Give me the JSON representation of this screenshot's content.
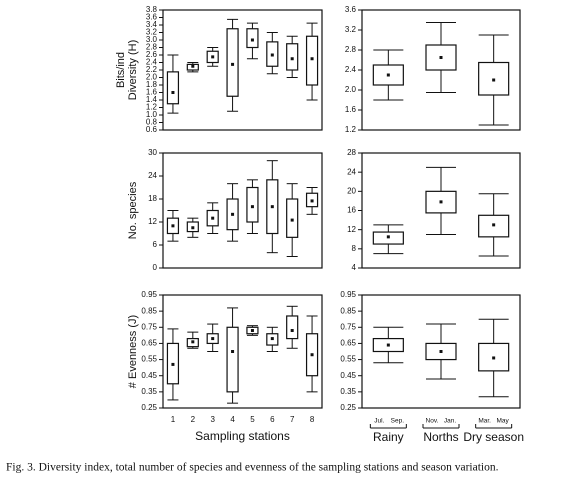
{
  "chart_data": [
    {
      "type": "box",
      "ylabel": [
        "Bits/ind",
        "Diversity (H)"
      ],
      "ylim": [
        0.6,
        3.8
      ],
      "yticks": [
        0.6,
        0.8,
        {
          "value": 1.0,
          "label": "1.0"
        },
        1.2,
        1.4,
        1.6,
        1.8,
        {
          "value": 2.0,
          "label": "2.0"
        },
        2.2,
        2.4,
        2.6,
        2.8,
        {
          "value": 3.0,
          "label": "3.0"
        },
        3.2,
        3.4,
        3.6,
        3.8
      ],
      "boxes": [
        {
          "low": 1.05,
          "q1": 1.3,
          "mid": 1.6,
          "q3": 2.15,
          "high": 2.6
        },
        {
          "low": 2.15,
          "q1": 2.2,
          "mid": 2.3,
          "q3": 2.35,
          "high": 2.4
        },
        {
          "low": 2.3,
          "q1": 2.4,
          "mid": 2.55,
          "q3": 2.7,
          "high": 2.8
        },
        {
          "low": 1.1,
          "q1": 1.5,
          "mid": 2.35,
          "q3": 3.3,
          "high": 3.55
        },
        {
          "low": 2.5,
          "q1": 2.8,
          "mid": 3.0,
          "q3": 3.3,
          "high": 3.45
        },
        {
          "low": 2.1,
          "q1": 2.3,
          "mid": 2.6,
          "q3": 2.95,
          "high": 3.2
        },
        {
          "low": 2.0,
          "q1": 2.2,
          "mid": 2.5,
          "q3": 2.9,
          "high": 3.1
        },
        {
          "low": 1.4,
          "q1": 1.8,
          "mid": 2.5,
          "q3": 3.1,
          "high": 3.45
        }
      ]
    },
    {
      "type": "box",
      "ylim": [
        1.2,
        3.6
      ],
      "yticks": [
        1.2,
        1.6,
        {
          "value": 2.0,
          "label": "2.0"
        },
        2.4,
        2.8,
        3.2,
        3.6
      ],
      "boxes": [
        {
          "low": 1.8,
          "q1": 2.1,
          "mid": 2.3,
          "q3": 2.5,
          "high": 2.8
        },
        {
          "low": 1.95,
          "q1": 2.4,
          "mid": 2.65,
          "q3": 2.9,
          "high": 3.35
        },
        {
          "low": 1.3,
          "q1": 1.9,
          "mid": 2.2,
          "q3": 2.55,
          "high": 3.1
        }
      ]
    },
    {
      "type": "box",
      "ylabel": [
        "No. species"
      ],
      "ylim": [
        0,
        30
      ],
      "yticks": [
        0,
        6,
        12,
        18,
        24,
        30
      ],
      "boxes": [
        {
          "low": 7,
          "q1": 9,
          "mid": 11,
          "q3": 13,
          "high": 15
        },
        {
          "low": 8,
          "q1": 9.5,
          "mid": 10.5,
          "q3": 12,
          "high": 13
        },
        {
          "low": 9,
          "q1": 11,
          "mid": 13,
          "q3": 15,
          "high": 17
        },
        {
          "low": 7,
          "q1": 10,
          "mid": 14,
          "q3": 18,
          "high": 22
        },
        {
          "low": 9,
          "q1": 12,
          "mid": 16,
          "q3": 21,
          "high": 23
        },
        {
          "low": 4,
          "q1": 9,
          "mid": 16,
          "q3": 23,
          "high": 28
        },
        {
          "low": 3,
          "q1": 8,
          "mid": 12.5,
          "q3": 18,
          "high": 22
        },
        {
          "low": 14,
          "q1": 16,
          "mid": 17.5,
          "q3": 19.5,
          "high": 21
        }
      ]
    },
    {
      "type": "box",
      "ylim": [
        4,
        28
      ],
      "yticks": [
        4,
        8,
        12,
        16,
        20,
        24,
        28
      ],
      "boxes": [
        {
          "low": 7,
          "q1": 9,
          "mid": 10.5,
          "q3": 11.5,
          "high": 13
        },
        {
          "low": 11,
          "q1": 15.5,
          "mid": 17.8,
          "q3": 20,
          "high": 25
        },
        {
          "low": 6.5,
          "q1": 10.5,
          "mid": 13,
          "q3": 15,
          "high": 19.5
        }
      ]
    },
    {
      "type": "box",
      "ylabel": [
        "# Evenness (J)"
      ],
      "xlabel": "Sampling stations",
      "ylim": [
        0.25,
        0.95
      ],
      "yticks": [
        0.25,
        0.35,
        0.45,
        0.55,
        0.65,
        0.75,
        0.85,
        0.95
      ],
      "categories": [
        "1",
        "2",
        "3",
        "4",
        "5",
        "6",
        "7",
        "8"
      ],
      "boxes": [
        {
          "low": 0.3,
          "q1": 0.4,
          "mid": 0.52,
          "q3": 0.65,
          "high": 0.74
        },
        {
          "low": 0.62,
          "q1": 0.63,
          "mid": 0.66,
          "q3": 0.68,
          "high": 0.72
        },
        {
          "low": 0.6,
          "q1": 0.65,
          "mid": 0.68,
          "q3": 0.71,
          "high": 0.77
        },
        {
          "low": 0.28,
          "q1": 0.35,
          "mid": 0.6,
          "q3": 0.75,
          "high": 0.87
        },
        {
          "low": 0.7,
          "q1": 0.71,
          "mid": 0.73,
          "q3": 0.75,
          "high": 0.76
        },
        {
          "low": 0.6,
          "q1": 0.64,
          "mid": 0.68,
          "q3": 0.71,
          "high": 0.75
        },
        {
          "low": 0.62,
          "q1": 0.68,
          "mid": 0.73,
          "q3": 0.82,
          "high": 0.88
        },
        {
          "low": 0.35,
          "q1": 0.45,
          "mid": 0.58,
          "q3": 0.71,
          "high": 0.82
        }
      ]
    },
    {
      "type": "box",
      "ylim": [
        0.25,
        0.95
      ],
      "yticks": [
        0.25,
        0.35,
        0.45,
        0.55,
        0.65,
        0.75,
        0.85,
        0.95
      ],
      "categories": [
        "Rainy",
        "Norths",
        "Dry season"
      ],
      "month_labels": [
        [
          "Jul.",
          "Sep."
        ],
        [
          "Nov.",
          "Jan."
        ],
        [
          "Mar.",
          "May"
        ]
      ],
      "boxes": [
        {
          "low": 0.53,
          "q1": 0.6,
          "mid": 0.64,
          "q3": 0.68,
          "high": 0.75
        },
        {
          "low": 0.43,
          "q1": 0.55,
          "mid": 0.6,
          "q3": 0.65,
          "high": 0.77
        },
        {
          "low": 0.32,
          "q1": 0.48,
          "mid": 0.56,
          "q3": 0.65,
          "high": 0.8
        }
      ]
    }
  ],
  "caption": "Fig. 3. Diversity index, total number of species and evenness of the sampling stations and season variation."
}
